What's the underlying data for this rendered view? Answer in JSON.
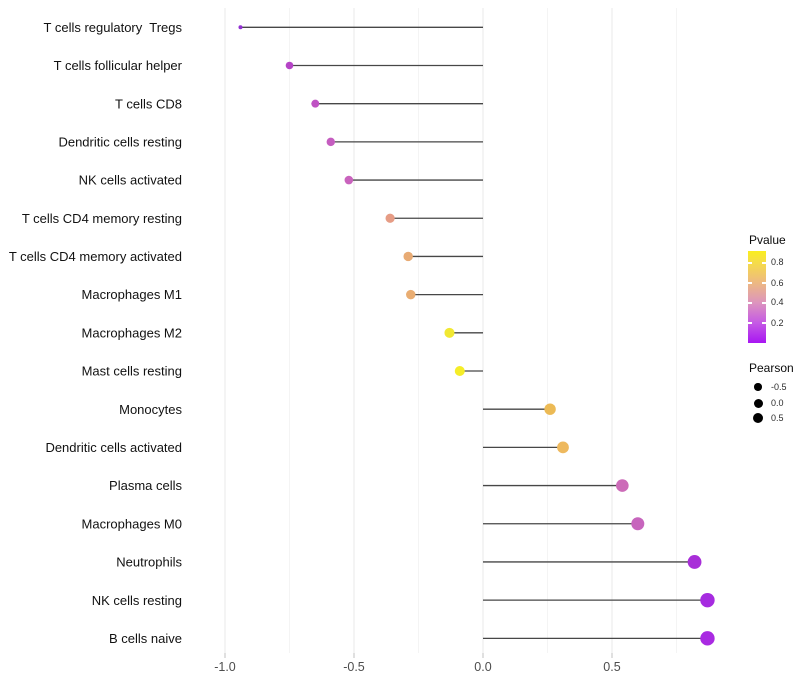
{
  "chart_data": {
    "type": "lollipop",
    "orientation": "horizontal",
    "title": "",
    "xlabel": "",
    "ylabel": "",
    "x_tick_labels": [
      "-1.0",
      "-0.5",
      "0.0",
      "0.5"
    ],
    "x_tick_values": [
      -1.0,
      -0.5,
      0.0,
      0.5
    ],
    "xlim": [
      -1.05,
      0.97
    ],
    "grid": "light vertical major and minor gridlines on white background",
    "stem_color": "#474747",
    "legend_position": "right",
    "points": [
      {
        "label": "T cells regulatory  Tregs",
        "pearson": -0.94,
        "pvalue": 0.08,
        "color": "#9230d2",
        "radius": 2.0
      },
      {
        "label": "T cells follicular helper",
        "pearson": -0.75,
        "pvalue": 0.22,
        "color": "#b544c6",
        "radius": 3.8
      },
      {
        "label": "T cells CD8",
        "pearson": -0.65,
        "pvalue": 0.25,
        "color": "#bf52c3",
        "radius": 4.0
      },
      {
        "label": "Dendritic cells resting",
        "pearson": -0.59,
        "pvalue": 0.28,
        "color": "#c55dc0",
        "radius": 4.2
      },
      {
        "label": "NK cells activated",
        "pearson": -0.52,
        "pvalue": 0.3,
        "color": "#c963bd",
        "radius": 4.3
      },
      {
        "label": "T cells CD4 memory resting",
        "pearson": -0.36,
        "pvalue": 0.55,
        "color": "#e69c85",
        "radius": 4.6
      },
      {
        "label": "T cells CD4 memory activated",
        "pearson": -0.29,
        "pvalue": 0.6,
        "color": "#e8ab74",
        "radius": 4.7
      },
      {
        "label": "Macrophages M1",
        "pearson": -0.28,
        "pvalue": 0.61,
        "color": "#e9ad72",
        "radius": 4.7
      },
      {
        "label": "Macrophages M2",
        "pearson": -0.13,
        "pvalue": 0.82,
        "color": "#f1e832",
        "radius": 5.0
      },
      {
        "label": "Mast cells resting",
        "pearson": -0.09,
        "pvalue": 0.86,
        "color": "#f5ed28",
        "radius": 5.0
      },
      {
        "label": "Monocytes",
        "pearson": 0.26,
        "pvalue": 0.65,
        "color": "#ecba55",
        "radius": 5.7
      },
      {
        "label": "Dendritic cells activated",
        "pearson": 0.31,
        "pvalue": 0.64,
        "color": "#eeb95e",
        "radius": 5.9
      },
      {
        "label": "Plasma cells",
        "pearson": 0.54,
        "pvalue": 0.38,
        "color": "#cc6bb8",
        "radius": 6.3
      },
      {
        "label": "Macrophages M0",
        "pearson": 0.6,
        "pvalue": 0.35,
        "color": "#c765bd",
        "radius": 6.5
      },
      {
        "label": "Neutrophils",
        "pearson": 0.82,
        "pvalue": 0.12,
        "color": "#a82ed8",
        "radius": 6.9
      },
      {
        "label": "NK cells resting",
        "pearson": 0.87,
        "pvalue": 0.1,
        "color": "#a62be0",
        "radius": 7.2
      },
      {
        "label": "B cells naive",
        "pearson": 0.87,
        "pvalue": 0.1,
        "color": "#a92ae2",
        "radius": 7.2
      }
    ]
  },
  "legend": {
    "pvalue": {
      "title": "Pvalue",
      "tick_labels": [
        "0.8",
        "0.6",
        "0.4",
        "0.2"
      ],
      "bar_value_range": [
        0.9,
        0.0
      ],
      "gradient_stops": [
        "#faee1e",
        "#f6df45",
        "#eebb7e",
        "#dd95bd",
        "#c55ae4",
        "#a816f2"
      ]
    },
    "pearson": {
      "title": "Pearson",
      "dot_color": "#000000",
      "entries": [
        {
          "label": "-0.5",
          "radius": 3.7
        },
        {
          "label": "0.0",
          "radius": 4.5
        },
        {
          "label": "0.5",
          "radius": 5.2
        }
      ]
    }
  }
}
